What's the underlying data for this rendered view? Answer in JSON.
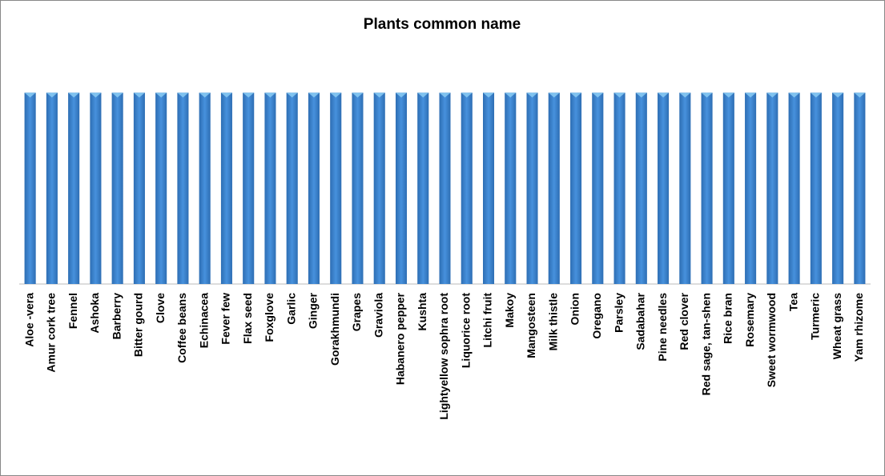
{
  "chart_data": {
    "type": "bar",
    "title": "Plants common name",
    "categories": [
      "Aloe -vera",
      "Amur cork tree",
      "Fennel",
      "Ashoka",
      "Barberry",
      "Bitter gourd",
      "Clove",
      "Coffee beans",
      "Echinacea",
      "Fever few",
      "Flax seed",
      "Foxglove",
      "Garlic",
      "Ginger",
      "Gorakhmundi",
      "Grapes",
      "Graviola",
      "Habanero pepper",
      "Kushta",
      "Lightyellow sophra root",
      "Liquorice root",
      "Litchi fruit",
      "Makoy",
      "Mangosteen",
      "Milk thistle",
      "Onion",
      "Oregano",
      "Parsley",
      "Sadabahar",
      "Pine needles",
      "Red clover",
      "Red sage, tan-shen",
      "Rice bran",
      "Rosemary",
      "Sweet wormwood",
      "Tea",
      "Turmeric",
      "Wheat grass",
      "Yam rhizome"
    ],
    "values": [
      1,
      1,
      1,
      1,
      1,
      1,
      1,
      1,
      1,
      1,
      1,
      1,
      1,
      1,
      1,
      1,
      1,
      1,
      1,
      1,
      1,
      1,
      1,
      1,
      1,
      1,
      1,
      1,
      1,
      1,
      1,
      1,
      1,
      1,
      1,
      1,
      1,
      1,
      1
    ],
    "color": "#3f86d2",
    "ylim": [
      0,
      1.2
    ]
  }
}
